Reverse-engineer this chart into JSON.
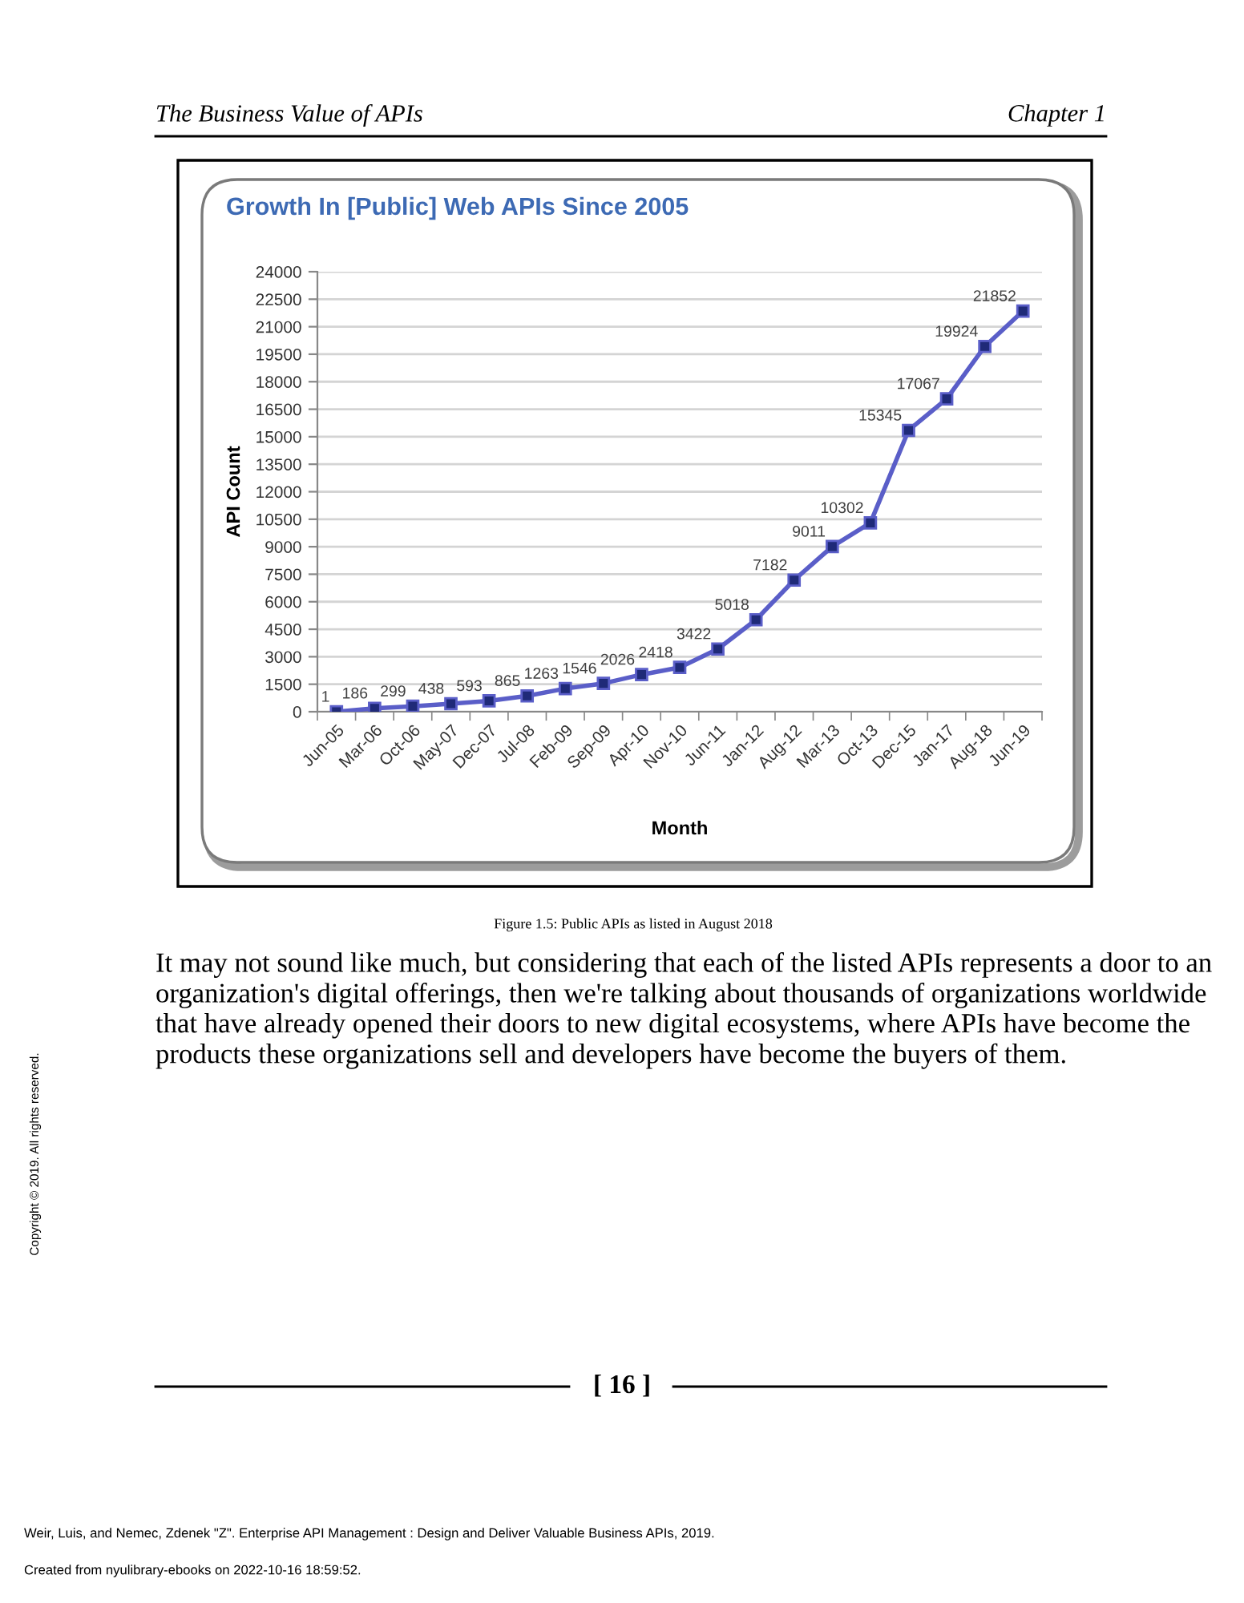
{
  "chart_data": {
    "type": "line",
    "title": "Growth In [Public] Web APIs Since 2005",
    "xlabel": "Month",
    "ylabel": "API Count",
    "categories": [
      "Jun-05",
      "Mar-06",
      "Oct-06",
      "May-07",
      "Dec-07",
      "Jul-08",
      "Feb-09",
      "Sep-09",
      "Apr-10",
      "Nov-10",
      "Jun-11",
      "Jan-12",
      "Aug-12",
      "Mar-13",
      "Oct-13",
      "Dec-15",
      "Jan-17",
      "Aug-18",
      "Jun-19"
    ],
    "values": [
      1,
      186,
      299,
      438,
      593,
      865,
      1263,
      1546,
      2026,
      2418,
      3422,
      5018,
      7182,
      9011,
      10302,
      15345,
      17067,
      19924,
      21852
    ],
    "color": "#5a5ec8",
    "marker": "square",
    "line_style": "solid",
    "ylim": [
      0,
      24000
    ],
    "yticks": [
      0,
      1500,
      3000,
      4500,
      6000,
      7500,
      9000,
      10500,
      12000,
      13500,
      15000,
      16500,
      18000,
      19500,
      21000,
      22500,
      24000
    ],
    "grid": "y",
    "data_labels": true,
    "annotations": [
      "The Business Value of APIs",
      "Chapter 1",
      "Figure 1.5: Public APIs as listed in August 2018",
      "It may not sound like much, but considering that each of the listed APIs represents a door to an organization's digital offerings, then we're talking about thousands of organizations worldwide that have already opened their doors to new digital ecosystems, where APIs have become the products these organizations sell and developers have become the buyers of them.",
      "[ 16 ]",
      "Copyright © 2019. All rights reserved.",
      "Weir, Luis, and Nemec, Zdenek \"Z\". Enterprise API Management : Design and Deliver Valuable Business APIs, 2019.",
      "Created from nyulibrary-ebooks on 2022-10-16 18:59:52."
    ]
  }
}
